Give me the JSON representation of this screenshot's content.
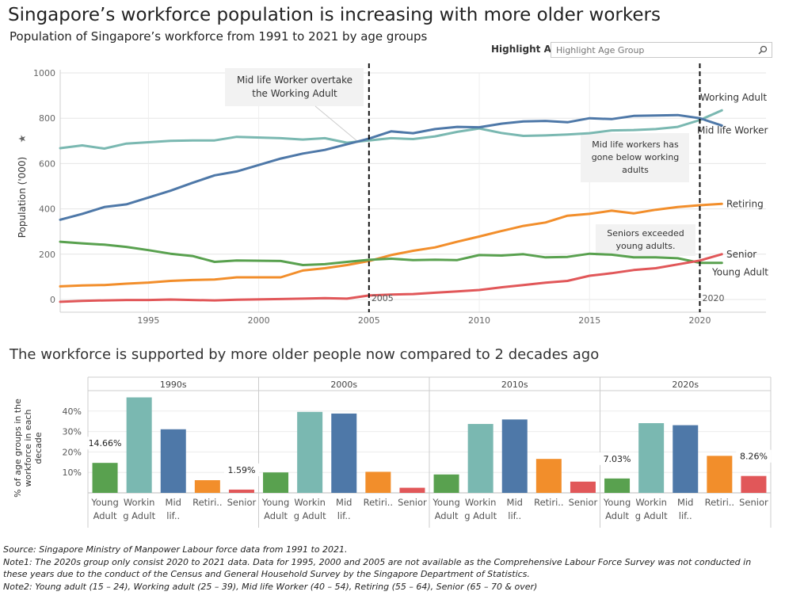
{
  "header": {
    "title": "Singapore’s workforce population is increasing with more older workers",
    "subtitle": "Population of Singapore’s workforce from 1991 to 2021 by age groups"
  },
  "highlight": {
    "label": "Highlight A..",
    "placeholder": "Highlight Age Group",
    "icon": "search-icon"
  },
  "section2_title": "The workforce is supported by more older people now compared to 2 decades ago",
  "notes": {
    "source": "Source: Singapore Ministry of Manpower Labour force data from 1991 to 2021.",
    "note1_line1": "Note1: The 2020s group only consist 2020 to 2021 data.  Data for 1995, 2000 and 2005 are not available as the Comprehensive Labour Force Survey was not conducted in",
    "note1_line2": "these years due to the conduct of the Census and General Household Survey by the Singapore Department of Statistics.",
    "note2": "Note2: Young adult (15 – 24), Working adult (25 – 39), Mid life Worker (40 – 54), Retiring (55 – 64), Senior (65 – 70 & over)"
  },
  "chart_data": [
    {
      "type": "line",
      "ylabel": "Population ('000)",
      "ylim": [
        0,
        1000
      ],
      "yticks": [
        "0",
        "200",
        "400",
        "600",
        "800",
        "1000"
      ],
      "xlim": [
        1991,
        2023
      ],
      "xticks": [
        "1995",
        "2000",
        "2005",
        "2010",
        "2015",
        "2020"
      ],
      "grid": true,
      "x": [
        1991,
        1992,
        1993,
        1994,
        1995,
        1996,
        1997,
        1998,
        1999,
        2001,
        2002,
        2003,
        2004,
        2005,
        2006,
        2007,
        2008,
        2009,
        2010,
        2011,
        2012,
        2013,
        2014,
        2015,
        2016,
        2017,
        2018,
        2019,
        2020,
        2021
      ],
      "series": [
        {
          "name": "Working Adult",
          "color": "#7ab8b1",
          "values": [
            668,
            680,
            666,
            688,
            694,
            700,
            702,
            702,
            718,
            712,
            706,
            712,
            692,
            702,
            712,
            708,
            720,
            740,
            755,
            735,
            722,
            724,
            728,
            734,
            746,
            748,
            752,
            762,
            792,
            835
          ]
        },
        {
          "name": "Mid life Worker",
          "color": "#4e78a8",
          "values": [
            352,
            378,
            408,
            420,
            450,
            480,
            515,
            548,
            565,
            622,
            644,
            660,
            685,
            710,
            742,
            734,
            752,
            762,
            760,
            776,
            786,
            788,
            782,
            800,
            796,
            810,
            812,
            814,
            800,
            768
          ]
        },
        {
          "name": "Retiring",
          "color": "#f28e2b",
          "values": [
            58,
            62,
            64,
            70,
            75,
            82,
            86,
            88,
            98,
            98,
            128,
            138,
            152,
            170,
            196,
            215,
            230,
            255,
            278,
            302,
            325,
            340,
            370,
            378,
            392,
            380,
            396,
            408,
            416,
            422
          ]
        },
        {
          "name": "Young Adult",
          "color": "#59a14f",
          "values": [
            255,
            248,
            242,
            232,
            218,
            202,
            192,
            166,
            172,
            170,
            152,
            156,
            166,
            175,
            180,
            174,
            176,
            174,
            196,
            194,
            200,
            186,
            188,
            202,
            198,
            186,
            186,
            182,
            162,
            162
          ]
        },
        {
          "name": "Senior",
          "color": "#e15759",
          "values": [
            -10,
            -6,
            -4,
            -2,
            -2,
            0,
            -2,
            -4,
            -1,
            2,
            4,
            6,
            4,
            18,
            22,
            24,
            30,
            36,
            42,
            54,
            64,
            74,
            82,
            105,
            116,
            130,
            138,
            155,
            172,
            200
          ]
        }
      ],
      "reference_lines": [
        {
          "x": 2005,
          "label": "2005"
        },
        {
          "x": 2020,
          "label": "2020"
        }
      ],
      "annotations": [
        {
          "text": [
            "Mid life Worker overtake",
            "the Working Adult"
          ]
        },
        {
          "text": [
            "Mid life workers has",
            "gone below working",
            "adults"
          ]
        },
        {
          "text": [
            "Seniors exceeded",
            "young adults."
          ]
        }
      ]
    },
    {
      "type": "bar",
      "ylabel": [
        "% of age groups in the",
        "workforce in each",
        "decade"
      ],
      "ylim": [
        0,
        50
      ],
      "yticks": [
        "10%",
        "20%",
        "30%",
        "40%"
      ],
      "panels": [
        "1990s",
        "2000s",
        "2010s",
        "2020s"
      ],
      "categories": [
        [
          "Young",
          "Adult"
        ],
        [
          "Workin",
          "g Adult"
        ],
        [
          "Mid",
          "lif.."
        ],
        [
          "Retiri..",
          ""
        ],
        [
          "Senior",
          ""
        ]
      ],
      "colors": [
        "#59a14f",
        "#7ab8b1",
        "#4e78a8",
        "#f28e2b",
        "#e15759"
      ],
      "values": [
        [
          14.66,
          46.7,
          31.1,
          6.2,
          1.59
        ],
        [
          10.0,
          39.6,
          38.8,
          10.3,
          2.5
        ],
        [
          9.0,
          33.7,
          35.9,
          16.6,
          5.5
        ],
        [
          7.03,
          34.1,
          33.1,
          18.1,
          8.26
        ]
      ],
      "data_labels": [
        {
          "panel": 0,
          "bar": 0,
          "text": "14.66%"
        },
        {
          "panel": 0,
          "bar": 4,
          "text": "1.59%"
        },
        {
          "panel": 3,
          "bar": 0,
          "text": "7.03%"
        },
        {
          "panel": 3,
          "bar": 4,
          "text": "8.26%"
        }
      ]
    }
  ]
}
